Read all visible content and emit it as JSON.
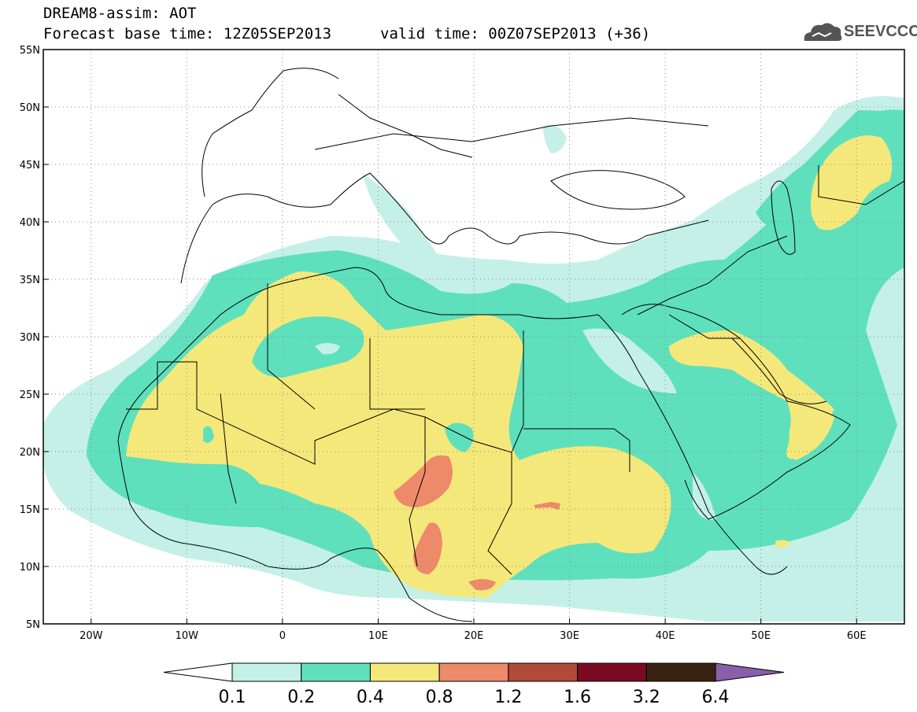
{
  "header": {
    "line1": "DREAM8-assim: AOT",
    "line2": "Forecast base time: 12Z05SEP2013",
    "valid": "valid time: 00Z07SEP2013 (+36)"
  },
  "logo": {
    "text": "SEEVCCC",
    "icon": "cloud-logo-icon"
  },
  "axes": {
    "lat_labels": [
      "55N",
      "50N",
      "45N",
      "40N",
      "35N",
      "30N",
      "25N",
      "20N",
      "15N",
      "10N",
      "5N"
    ],
    "lon_labels": [
      "20W",
      "10W",
      "0",
      "10E",
      "20E",
      "30E",
      "40E",
      "50E",
      "60E"
    ],
    "lon_range": [
      -25,
      65
    ],
    "lat_range": [
      5,
      55
    ]
  },
  "colorbar": {
    "labels": [
      "0.1",
      "0.2",
      "0.4",
      "0.8",
      "1.2",
      "1.6",
      "3.2",
      "6.4"
    ],
    "colors": [
      "#ffffff",
      "#c4f0e8",
      "#5ee0bc",
      "#f5e87a",
      "#ec8a6a",
      "#b04a3a",
      "#7a0a22",
      "#3a2212",
      "#8a5ea8"
    ]
  },
  "colors": {
    "c01": "#c4f0e8",
    "c02": "#5ee0bc",
    "c04": "#f5e87a",
    "c08": "#ec8a6a"
  }
}
